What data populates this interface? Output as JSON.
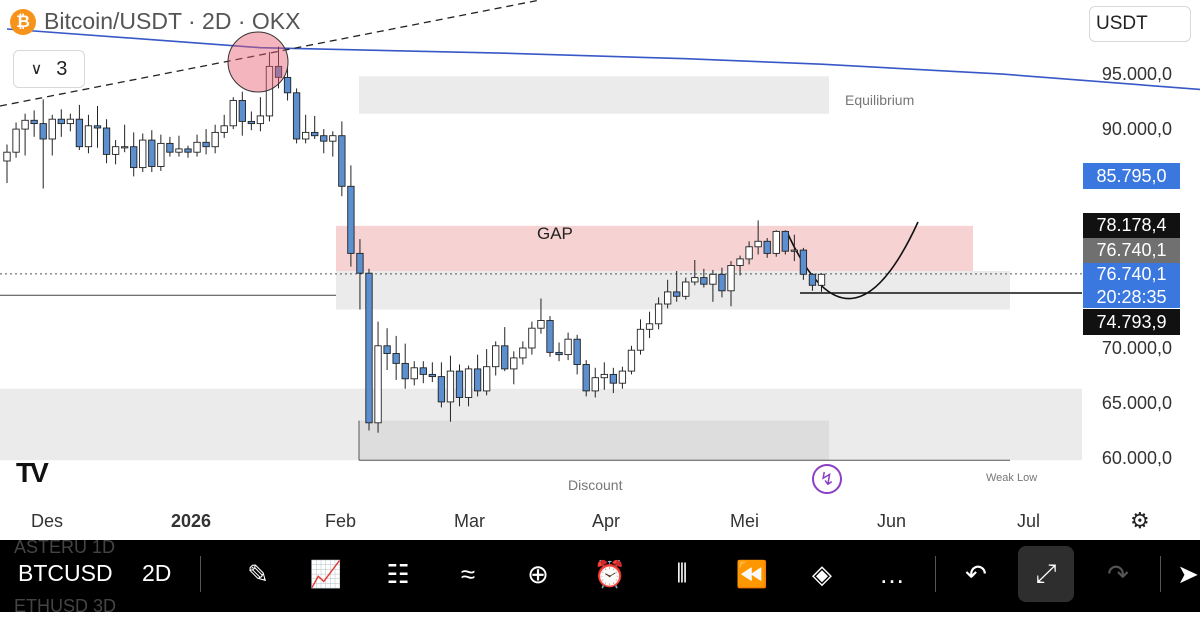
{
  "header": {
    "symbol_title": "Bitcoin/USDT · 2D · OKX",
    "coin_badge": "₿",
    "interval_value": "3",
    "currency": "USDT"
  },
  "price_axis": {
    "ticks": [
      "95.000,0",
      "90.000,0",
      "70.000,0",
      "65.000,0",
      "60.000,0"
    ],
    "tags": {
      "ma": "85.795,0",
      "high": "78.178,4",
      "last_grey": "76.740,1",
      "last_blue": "76.740,1",
      "countdown": "20:28:35",
      "level": "74.793,9"
    }
  },
  "time_axis": {
    "ticks": [
      "Des",
      "2026",
      "Feb",
      "Mar",
      "Apr",
      "Mei",
      "Jun",
      "Jul"
    ]
  },
  "annotations": {
    "equilibrium": "Equilibrium",
    "gap": "GAP",
    "discount": "Discount",
    "weak_low": "Weak Low"
  },
  "colors": {
    "bull_candle": "#ffffff",
    "bear_candle": "#5b8fd0",
    "moving_average": "#3858c8",
    "gap_zone": "#f6d2d2",
    "grey_zone": "#ebebeb",
    "price_tag_blue": "#3a78e0",
    "price_tag_dark": "#111111",
    "price_tag_grey": "#707070"
  },
  "bottom_toolbar": {
    "ghost_rows": [
      "ASTERU  1D",
      "ETHUSD  3D"
    ],
    "symbol": "BTCUSD",
    "timeframe": "2D",
    "icons": [
      "pen-icon",
      "chart-bars-icon",
      "grid-icon",
      "trend-icon",
      "plus-circle-icon",
      "alarm-icon",
      "candles-icon",
      "replay-icon",
      "layers-icon",
      "more-icon",
      "undo-icon",
      "fullscreen-exit-icon",
      "redo-icon",
      "forward-icon"
    ]
  },
  "chart_data": {
    "type": "candlestick",
    "timeframe": "2D",
    "y_range": [
      58800,
      99000
    ],
    "x_labels": [
      "Des",
      "2026",
      "Feb",
      "Mar",
      "Apr",
      "Mei",
      "Jun",
      "Jul"
    ],
    "candles": [
      [
        87000,
        88500,
        85000,
        87800
      ],
      [
        87800,
        90500,
        87300,
        89900
      ],
      [
        89900,
        91300,
        87500,
        90700
      ],
      [
        90700,
        91600,
        89200,
        90400
      ],
      [
        90400,
        92600,
        84500,
        89000
      ],
      [
        89000,
        91200,
        87500,
        90800
      ],
      [
        90800,
        91700,
        89200,
        90400
      ],
      [
        90400,
        91300,
        89700,
        90800
      ],
      [
        90800,
        92100,
        88000,
        88300
      ],
      [
        88300,
        91200,
        87700,
        90200
      ],
      [
        90200,
        92000,
        88200,
        90000
      ],
      [
        90000,
        90800,
        86800,
        87600
      ],
      [
        87600,
        88900,
        86700,
        88300
      ],
      [
        88300,
        90300,
        87800,
        88300
      ],
      [
        88300,
        89600,
        85600,
        86400
      ],
      [
        86400,
        89500,
        86000,
        88900
      ],
      [
        88900,
        89800,
        86000,
        86500
      ],
      [
        86500,
        89400,
        86100,
        88600
      ],
      [
        88600,
        89200,
        87400,
        87800
      ],
      [
        87800,
        89300,
        87400,
        88100
      ],
      [
        88100,
        88400,
        87300,
        87800
      ],
      [
        87800,
        89400,
        87400,
        88700
      ],
      [
        88700,
        89900,
        87600,
        88300
      ],
      [
        88300,
        90300,
        87700,
        89600
      ],
      [
        89600,
        91200,
        89100,
        90200
      ],
      [
        90200,
        92800,
        89900,
        92500
      ],
      [
        92500,
        93300,
        89300,
        90600
      ],
      [
        90600,
        91500,
        89800,
        90400
      ],
      [
        90400,
        92800,
        89700,
        91100
      ],
      [
        91100,
        96900,
        90600,
        95600
      ],
      [
        95600,
        97400,
        93600,
        94600
      ],
      [
        94600,
        95500,
        92500,
        93200
      ],
      [
        93200,
        93600,
        88600,
        89000
      ],
      [
        89000,
        91200,
        88600,
        89600
      ],
      [
        89600,
        91100,
        89000,
        89300
      ],
      [
        89300,
        89900,
        87700,
        88800
      ],
      [
        88800,
        89700,
        87400,
        89300
      ],
      [
        89300,
        90600,
        83800,
        84700
      ],
      [
        84700,
        86600,
        77400,
        78600
      ],
      [
        78600,
        79900,
        73500,
        76800
      ],
      [
        76800,
        77200,
        62500,
        63200
      ],
      [
        63200,
        72400,
        62300,
        70200
      ],
      [
        70200,
        71800,
        68000,
        69500
      ],
      [
        69500,
        71100,
        67100,
        68600
      ],
      [
        68600,
        70400,
        66300,
        67200
      ],
      [
        67200,
        68800,
        66600,
        68200
      ],
      [
        68200,
        68800,
        66800,
        67600
      ],
      [
        67600,
        68700,
        66900,
        67400
      ],
      [
        67400,
        68700,
        64600,
        65100
      ],
      [
        65100,
        69300,
        63300,
        67900
      ],
      [
        67900,
        68500,
        64700,
        65500
      ],
      [
        65500,
        68400,
        64700,
        68100
      ],
      [
        68100,
        69400,
        65600,
        66100
      ],
      [
        66100,
        69900,
        65700,
        68300
      ],
      [
        68300,
        70600,
        67500,
        70200
      ],
      [
        70200,
        71900,
        67900,
        68100
      ],
      [
        68100,
        69700,
        66700,
        69100
      ],
      [
        69100,
        70600,
        68500,
        70000
      ],
      [
        70000,
        72400,
        69400,
        71800
      ],
      [
        71800,
        74500,
        71300,
        72500
      ],
      [
        72500,
        72900,
        69200,
        69600
      ],
      [
        69600,
        70500,
        68800,
        69400
      ],
      [
        69400,
        71400,
        68900,
        70800
      ],
      [
        70800,
        71200,
        67600,
        68500
      ],
      [
        68500,
        68900,
        65600,
        66100
      ],
      [
        66100,
        68200,
        65500,
        67300
      ],
      [
        67300,
        68700,
        66200,
        67600
      ],
      [
        67600,
        68200,
        65900,
        66800
      ],
      [
        66800,
        68300,
        66300,
        67900
      ],
      [
        67900,
        70200,
        67600,
        69800
      ],
      [
        69800,
        72600,
        69400,
        71700
      ],
      [
        71700,
        73300,
        70900,
        72200
      ],
      [
        72200,
        74600,
        71700,
        74000
      ],
      [
        74000,
        76200,
        73600,
        75100
      ],
      [
        75100,
        77000,
        74200,
        74700
      ],
      [
        74700,
        76400,
        74400,
        76000
      ],
      [
        76000,
        78000,
        75700,
        76400
      ],
      [
        76400,
        77200,
        75500,
        75800
      ],
      [
        75800,
        77100,
        74200,
        76700
      ],
      [
        76700,
        77300,
        74600,
        75200
      ],
      [
        75200,
        77900,
        73800,
        77500
      ],
      [
        77500,
        78400,
        76600,
        78100
      ],
      [
        78100,
        79700,
        77600,
        79200
      ],
      [
        79200,
        81600,
        78500,
        79700
      ],
      [
        79700,
        80000,
        78200,
        78600
      ],
      [
        78600,
        80700,
        78300,
        80600
      ],
      [
        80600,
        80700,
        78500,
        78800
      ],
      [
        78800,
        80300,
        77900,
        78900
      ],
      [
        78900,
        79100,
        76200,
        76700
      ],
      [
        76700,
        76800,
        75200,
        75700
      ],
      [
        75700,
        76800,
        75100,
        76700
      ]
    ],
    "moving_average": [
      [
        0,
        99000
      ],
      [
        28,
        97300
      ],
      [
        55,
        96800
      ],
      [
        75,
        96300
      ],
      [
        90,
        95800
      ],
      [
        110,
        94900
      ],
      [
        135,
        93300
      ],
      [
        160,
        91600
      ],
      [
        185,
        90300
      ],
      [
        210,
        89100
      ],
      [
        235,
        87900
      ],
      [
        265,
        86900
      ],
      [
        285,
        86300
      ],
      [
        300,
        85800
      ]
    ],
    "zones": {
      "equilibrium": [
        91300,
        94700
      ],
      "gap": [
        77000,
        81100
      ],
      "upper_grey": [
        73500,
        77000
      ],
      "discount_outer": [
        59800,
        66300
      ],
      "discount_inner": [
        59800,
        63400
      ]
    },
    "levels": {
      "horizontal_left": 74800,
      "dotted_last_price": 76740.1,
      "projection_low": 75000,
      "discount_low": 59800
    }
  }
}
